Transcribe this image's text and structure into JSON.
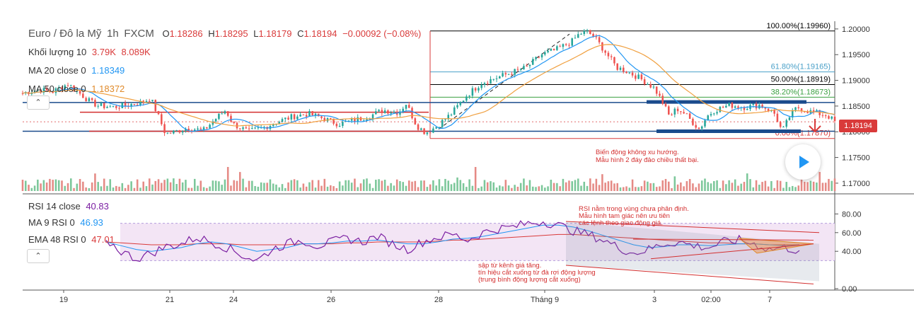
{
  "main_legend": {
    "symbol": "Euro / Đô la Mỹ",
    "interval": "1h",
    "exchange": "FXCM",
    "ohlc": [
      {
        "k": "O",
        "v": "1.18286"
      },
      {
        "k": "H",
        "v": "1.18295"
      },
      {
        "k": "L",
        "v": "1.18179"
      },
      {
        "k": "C",
        "v": "1.18194"
      }
    ],
    "change": "−0.00092 (−0.08%)",
    "volume_label": "Khối lượng 10",
    "volume_v1": "3.79K",
    "volume_v2": "8.089K",
    "ma20_label": "MA 20 close 0",
    "ma20_value": "1.18349",
    "ma50_label": "MA 50 close 0",
    "ma50_value": "1.18372"
  },
  "rsi_legend": {
    "rsi_label": "RSI 14 close",
    "rsi_value": "40.83",
    "ma9_label": "MA 9 RSI 0",
    "ma9_value": "46.93",
    "ema48_label": "EMA 48 RSI 0",
    "ema48_value": "47.01"
  },
  "colors": {
    "up": "#26a69a",
    "down": "#ef5350",
    "ma20": "#2196f3",
    "ma50": "#f0a040",
    "rsi": "#7b1fa2",
    "annotation": "#d32f2f",
    "trendline": "#1a4b8c",
    "price_tag": "#d93a3a"
  },
  "price_tag": "1.18194",
  "annotations": {
    "main_note": [
      "Biến động không xu hướng.",
      "Mẫu hình 2 đáy đảo chiều thất bại."
    ],
    "rsi_note_top": [
      "RSI nằm trong vùng chưa phân định.",
      "Mẫu hình tam giác nên ưu tiên",
      "các lệnh theo giao động giá."
    ],
    "rsi_note_bottom": [
      "sập từ kênh giá tăng.",
      "tín hiệu cắt xuống từ đà rơi động lượng",
      "(trung bình động lượng cắt xuống)"
    ]
  },
  "chart_data": [
    {
      "type": "candlestick",
      "title": "Euro / Đô la Mỹ",
      "x_ticks": [
        "19",
        "21",
        "24",
        "26",
        "28",
        "Tháng 9",
        "3",
        "02:00",
        "7"
      ],
      "y_ticks": [
        "1.20000",
        "1.19500",
        "1.19000",
        "1.18500",
        "1.18000",
        "1.17500",
        "1.17000"
      ],
      "ylim": [
        1.1682,
        1.2015
      ],
      "fib_levels": [
        {
          "label": "100.00%(1.19960)",
          "value": 1.1996
        },
        {
          "label": "61.80%(1.19165)",
          "value": 1.19165
        },
        {
          "label": "50.00%(1.18919)",
          "value": 1.18919
        },
        {
          "label": "38.20%(1.18673)",
          "value": 1.18673
        },
        {
          "label": "0.00%(1.17870)",
          "value": 1.1787
        }
      ],
      "horizontal_lines": [
        1.1857,
        1.1838,
        1.18194,
        1.1801
      ],
      "close_path": [
        [
          0,
          1.1875
        ],
        [
          10,
          1.1882
        ],
        [
          20,
          1.1878
        ],
        [
          30,
          1.1893
        ],
        [
          40,
          1.187
        ],
        [
          45,
          1.1858
        ],
        [
          50,
          1.1851
        ],
        [
          60,
          1.1848
        ],
        [
          70,
          1.1852
        ],
        [
          80,
          1.1858
        ],
        [
          85,
          1.1866
        ],
        [
          90,
          1.1832
        ],
        [
          95,
          1.1796
        ],
        [
          100,
          1.1799
        ],
        [
          110,
          1.1808
        ],
        [
          120,
          1.1802
        ],
        [
          130,
          1.183
        ],
        [
          135,
          1.1842
        ],
        [
          140,
          1.1815
        ],
        [
          150,
          1.18
        ],
        [
          160,
          1.1808
        ],
        [
          170,
          1.182
        ],
        [
          180,
          1.183
        ],
        [
          190,
          1.1835
        ],
        [
          200,
          1.1826
        ],
        [
          210,
          1.1815
        ],
        [
          220,
          1.1822
        ],
        [
          230,
          1.183
        ],
        [
          240,
          1.1842
        ],
        [
          250,
          1.1838
        ],
        [
          255,
          1.1855
        ],
        [
          262,
          1.1812
        ],
        [
          268,
          1.1798
        ],
        [
          275,
          1.181
        ],
        [
          285,
          1.1835
        ],
        [
          295,
          1.187
        ],
        [
          305,
          1.1895
        ],
        [
          315,
          1.1905
        ],
        [
          325,
          1.1915
        ],
        [
          335,
          1.1925
        ],
        [
          345,
          1.195
        ],
        [
          355,
          1.196
        ],
        [
          365,
          1.1975
        ],
        [
          370,
          1.199
        ],
        [
          375,
          1.1995
        ],
        [
          380,
          1.1985
        ],
        [
          385,
          1.1965
        ],
        [
          390,
          1.1945
        ],
        [
          395,
          1.1925
        ],
        [
          400,
          1.192
        ],
        [
          410,
          1.1905
        ],
        [
          420,
          1.1885
        ],
        [
          425,
          1.186
        ],
        [
          430,
          1.183
        ],
        [
          435,
          1.1845
        ],
        [
          440,
          1.1836
        ],
        [
          445,
          1.182
        ],
        [
          450,
          1.1805
        ],
        [
          455,
          1.183
        ],
        [
          460,
          1.1842
        ],
        [
          470,
          1.1852
        ],
        [
          480,
          1.1848
        ],
        [
          490,
          1.1852
        ],
        [
          495,
          1.1845
        ],
        [
          500,
          1.1835
        ],
        [
          505,
          1.18
        ],
        [
          510,
          1.183
        ],
        [
          515,
          1.1848
        ],
        [
          520,
          1.1842
        ],
        [
          530,
          1.1835
        ],
        [
          535,
          1.1832
        ],
        [
          540,
          1.18194
        ]
      ]
    },
    {
      "type": "bar",
      "title": "Khối lượng 10",
      "values_pattern": "volume bars under price"
    },
    {
      "type": "line",
      "title": "RSI 14 close",
      "y_ticks": [
        "80.00",
        "60.00",
        "40.00",
        "0.00"
      ],
      "ylim": [
        0,
        100
      ],
      "band": [
        30,
        70
      ],
      "series": [
        {
          "name": "RSI 14 close",
          "values": [
            52,
            40,
            32,
            38,
            45,
            48,
            55,
            50,
            44,
            36,
            30,
            42,
            48,
            52,
            46,
            50,
            54,
            50,
            56,
            48,
            42,
            50,
            55,
            58,
            52,
            60,
            64,
            66,
            70,
            72,
            68,
            62,
            58,
            52,
            44,
            38,
            42,
            48,
            50,
            46,
            44,
            50,
            52,
            48,
            42,
            44,
            40.83
          ]
        },
        {
          "name": "MA 9 RSI 0",
          "values": [
            50,
            46,
            42,
            40,
            42,
            44,
            48,
            50,
            48,
            44,
            40,
            42,
            44,
            48,
            48,
            49,
            51,
            51,
            52,
            50,
            48,
            48,
            50,
            53,
            54,
            56,
            59,
            62,
            65,
            68,
            68,
            66,
            62,
            57,
            52,
            47,
            44,
            45,
            47,
            47,
            46,
            47,
            48,
            48,
            47,
            46,
            46.93
          ]
        },
        {
          "name": "EMA 48 RSI 0",
          "values": [
            50,
            49,
            48,
            47,
            47,
            47,
            48,
            48,
            48,
            47,
            47,
            47,
            47,
            48,
            48,
            48,
            49,
            49,
            50,
            50,
            50,
            50,
            51,
            52,
            52,
            53,
            54,
            55,
            56,
            57,
            58,
            58,
            57,
            56,
            55,
            54,
            53,
            52,
            51,
            50,
            49,
            49,
            48,
            48,
            47,
            47,
            47.01
          ]
        }
      ]
    }
  ]
}
